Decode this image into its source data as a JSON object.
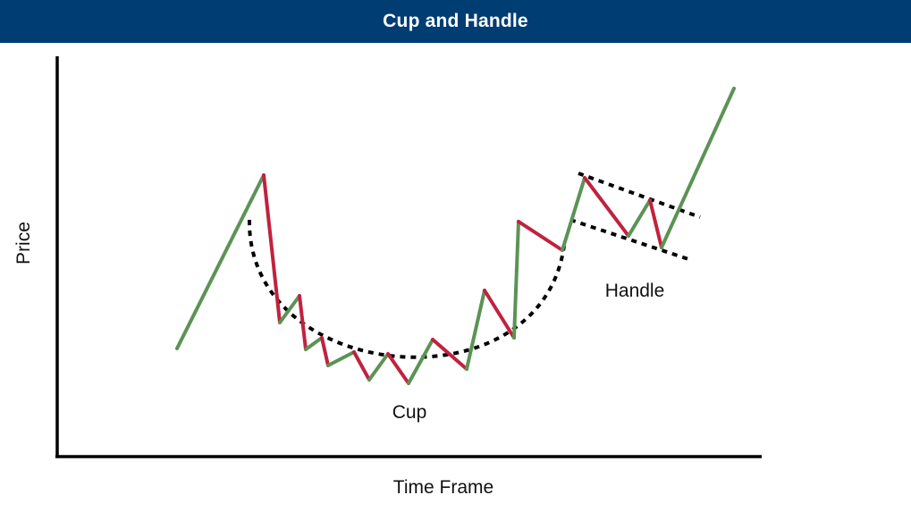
{
  "header": {
    "title": "Cup and Handle"
  },
  "axes": {
    "x_label": "Time Frame",
    "y_label": "Price"
  },
  "annotations": {
    "cup": "Cup",
    "handle": "Handle"
  },
  "colors": {
    "header_bg": "#003d73",
    "up_move": "#5b9354",
    "down_move": "#c0223f",
    "axis": "#000000",
    "guide": "#000000"
  },
  "chart_data": {
    "type": "line",
    "title": "Cup and Handle",
    "xlabel": "Time Frame",
    "ylabel": "Price",
    "price_path": [
      [
        198,
        390
      ],
      [
        295,
        196
      ],
      [
        313,
        361
      ],
      [
        335,
        331
      ],
      [
        342,
        391
      ],
      [
        360,
        378
      ],
      [
        367,
        409
      ],
      [
        396,
        394
      ],
      [
        413,
        425
      ],
      [
        434,
        396
      ],
      [
        457,
        429
      ],
      [
        484,
        380
      ],
      [
        522,
        413
      ],
      [
        542,
        325
      ],
      [
        575,
        378
      ],
      [
        580,
        248
      ],
      [
        629,
        280
      ],
      [
        654,
        199
      ],
      [
        703,
        264
      ],
      [
        727,
        224
      ],
      [
        740,
        277
      ],
      [
        821,
        99
      ]
    ],
    "cup_curve": {
      "start": [
        279,
        246
      ],
      "c1": [
        276,
        430
      ],
      "c2": [
        605,
        460
      ],
      "end": [
        631,
        275
      ]
    },
    "handle_channel": {
      "upper": [
        [
          647,
          194
        ],
        [
          783,
          243
        ]
      ],
      "lower": [
        [
          638,
          246
        ],
        [
          770,
          290
        ]
      ]
    }
  }
}
